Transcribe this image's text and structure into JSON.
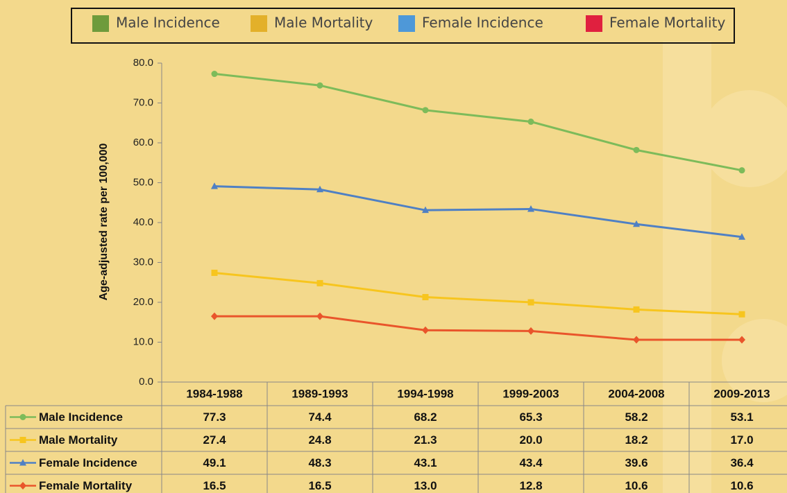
{
  "chart_data": {
    "type": "line",
    "y_label": "Age-adjusted rate per 100,000",
    "categories": [
      "1984-1988",
      "1989-1993",
      "1994-1998",
      "1999-2003",
      "2004-2008",
      "2009-2013"
    ],
    "series": [
      {
        "name": "Male Incidence",
        "color": "#7dbb5a",
        "legend_color": "#6e9b3c",
        "marker": "circle",
        "values": [
          77.3,
          74.4,
          68.2,
          65.3,
          58.2,
          53.1
        ],
        "value_labels": [
          "77.3",
          "74.4",
          "68.2",
          "65.3",
          "58.2",
          "53.1"
        ]
      },
      {
        "name": "Male Mortality",
        "color": "#f7c51e",
        "legend_color": "#e3b02a",
        "marker": "square",
        "values": [
          27.4,
          24.8,
          21.3,
          20.0,
          18.2,
          17.0
        ],
        "value_labels": [
          "27.4",
          "24.8",
          "21.3",
          "20.0",
          "18.2",
          "17.0"
        ]
      },
      {
        "name": "Female Incidence",
        "color": "#4f80c4",
        "legend_color": "#4e98d8",
        "marker": "triangle",
        "values": [
          49.1,
          48.3,
          43.1,
          43.4,
          39.6,
          36.4
        ],
        "value_labels": [
          "49.1",
          "48.3",
          "43.1",
          "43.4",
          "39.6",
          "36.4"
        ]
      },
      {
        "name": "Female Mortality",
        "color": "#e9552b",
        "legend_color": "#e0203f",
        "marker": "diamond",
        "values": [
          16.5,
          16.5,
          13.0,
          12.8,
          10.6,
          10.6
        ],
        "value_labels": [
          "16.5",
          "16.5",
          "13.0",
          "12.8",
          "10.6",
          "10.6"
        ]
      }
    ],
    "ylim": [
      0,
      80
    ],
    "yticks": [
      {
        "value": 0,
        "label": "0.0"
      },
      {
        "value": 10,
        "label": "10.0"
      },
      {
        "value": 20,
        "label": "20.0"
      },
      {
        "value": 30,
        "label": "30.0"
      },
      {
        "value": 40,
        "label": "40.0"
      },
      {
        "value": 50,
        "label": "50.0"
      },
      {
        "value": 60,
        "label": "60.0"
      },
      {
        "value": 70,
        "label": "70.0"
      },
      {
        "value": 80,
        "label": "80.0"
      }
    ],
    "grid": false
  }
}
